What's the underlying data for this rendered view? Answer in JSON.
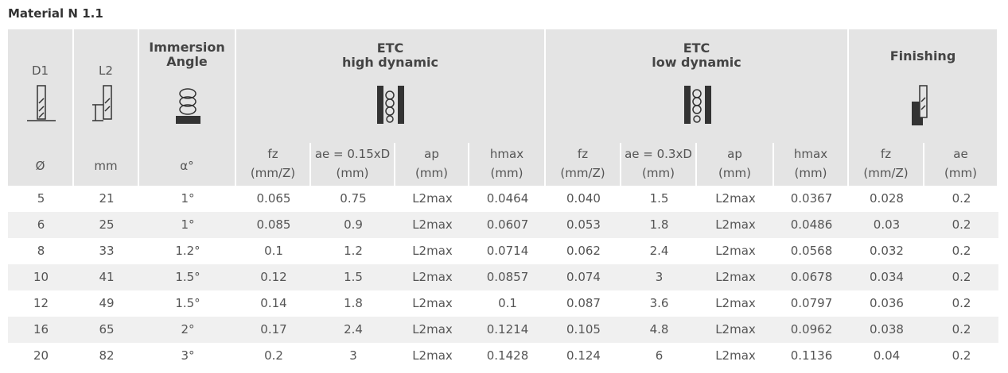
{
  "header": {
    "title": "Material N 1.1"
  },
  "table": {
    "fixed_columns": [
      {
        "label": "D1",
        "unit": "Ø"
      },
      {
        "label": "L2",
        "unit": "mm"
      },
      {
        "label": "Immersion Angle",
        "unit": "α°"
      }
    ],
    "groups": [
      {
        "title": "ETC",
        "subtitle": "high dynamic",
        "columns": [
          {
            "name": "fz",
            "unit": "(mm/Z)"
          },
          {
            "name": "ae = 0.15xD",
            "unit": "(mm)"
          },
          {
            "name": "ap",
            "unit": "(mm)"
          },
          {
            "name": "hmax",
            "unit": "(mm)"
          }
        ]
      },
      {
        "title": "ETC",
        "subtitle": "low dynamic",
        "columns": [
          {
            "name": "fz",
            "unit": "(mm/Z)"
          },
          {
            "name": "ae = 0.3xD",
            "unit": "(mm)"
          },
          {
            "name": "ap",
            "unit": "(mm)"
          },
          {
            "name": "hmax",
            "unit": "(mm)"
          }
        ]
      },
      {
        "title": "Finishing",
        "columns": [
          {
            "name": "fz",
            "unit": "(mm/Z)"
          },
          {
            "name": "ae",
            "unit": "(mm)"
          }
        ]
      }
    ],
    "rows": [
      [
        "5",
        "21",
        "1°",
        "0.065",
        "0.75",
        "L2max",
        "0.0464",
        "0.040",
        "1.5",
        "L2max",
        "0.0367",
        "0.028",
        "0.2"
      ],
      [
        "6",
        "25",
        "1°",
        "0.085",
        "0.9",
        "L2max",
        "0.0607",
        "0.053",
        "1.8",
        "L2max",
        "0.0486",
        "0.03",
        "0.2"
      ],
      [
        "8",
        "33",
        "1.2°",
        "0.1",
        "1.2",
        "L2max",
        "0.0714",
        "0.062",
        "2.4",
        "L2max",
        "0.0568",
        "0.032",
        "0.2"
      ],
      [
        "10",
        "41",
        "1.5°",
        "0.12",
        "1.5",
        "L2max",
        "0.0857",
        "0.074",
        "3",
        "L2max",
        "0.0678",
        "0.034",
        "0.2"
      ],
      [
        "12",
        "49",
        "1.5°",
        "0.14",
        "1.8",
        "L2max",
        "0.1",
        "0.087",
        "3.6",
        "L2max",
        "0.0797",
        "0.036",
        "0.2"
      ],
      [
        "16",
        "65",
        "2°",
        "0.17",
        "2.4",
        "L2max",
        "0.1214",
        "0.105",
        "4.8",
        "L2max",
        "0.0962",
        "0.038",
        "0.2"
      ],
      [
        "20",
        "82",
        "3°",
        "0.2",
        "3",
        "L2max",
        "0.1428",
        "0.124",
        "6",
        "L2max",
        "0.1136",
        "0.04",
        "0.2"
      ]
    ]
  }
}
